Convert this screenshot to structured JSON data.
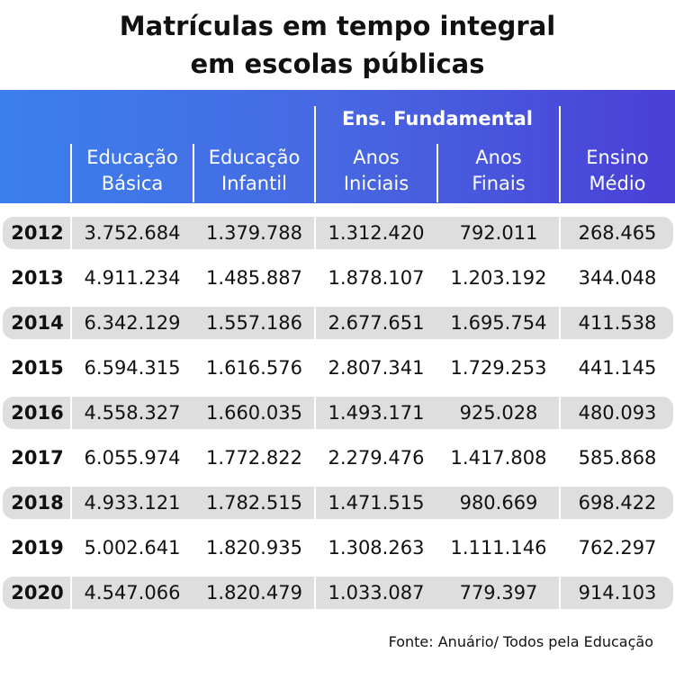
{
  "title": [
    "Matrículas em tempo integral",
    "em escolas públicas"
  ],
  "header": {
    "group": "Ens. Fundamental",
    "columns": [
      [
        "Educação",
        "Básica"
      ],
      [
        "Educação",
        "Infantil"
      ],
      [
        "Anos",
        "Iniciais"
      ],
      [
        "Anos",
        "Finais"
      ],
      [
        "Ensino",
        "Médio"
      ]
    ]
  },
  "table": {
    "rows": [
      [
        "2012",
        "3.752.684",
        "1.379.788",
        "1.312.420",
        "792.011",
        "268.465"
      ],
      [
        "2013",
        "4.911.234",
        "1.485.887",
        "1.878.107",
        "1.203.192",
        "344.048"
      ],
      [
        "2014",
        "6.342.129",
        "1.557.186",
        "2.677.651",
        "1.695.754",
        "411.538"
      ],
      [
        "2015",
        "6.594.315",
        "1.616.576",
        "2.807.341",
        "1.729.253",
        "441.145"
      ],
      [
        "2016",
        "4.558.327",
        "1.660.035",
        "1.493.171",
        "925.028",
        "480.093"
      ],
      [
        "2017",
        "6.055.974",
        "1.772.822",
        "2.279.476",
        "1.417.808",
        "585.868"
      ],
      [
        "2018",
        "4.933.121",
        "1.782.515",
        "1.471.515",
        "980.669",
        "698.422"
      ],
      [
        "2019",
        "5.002.641",
        "1.820.935",
        "1.308.263",
        "1.111.146",
        "762.297"
      ],
      [
        "2020",
        "4.547.066",
        "1.820.479",
        "1.033.087",
        "779.397",
        "914.103"
      ]
    ]
  },
  "source": "Fonte: Anuário/ Todos pela Educação"
}
